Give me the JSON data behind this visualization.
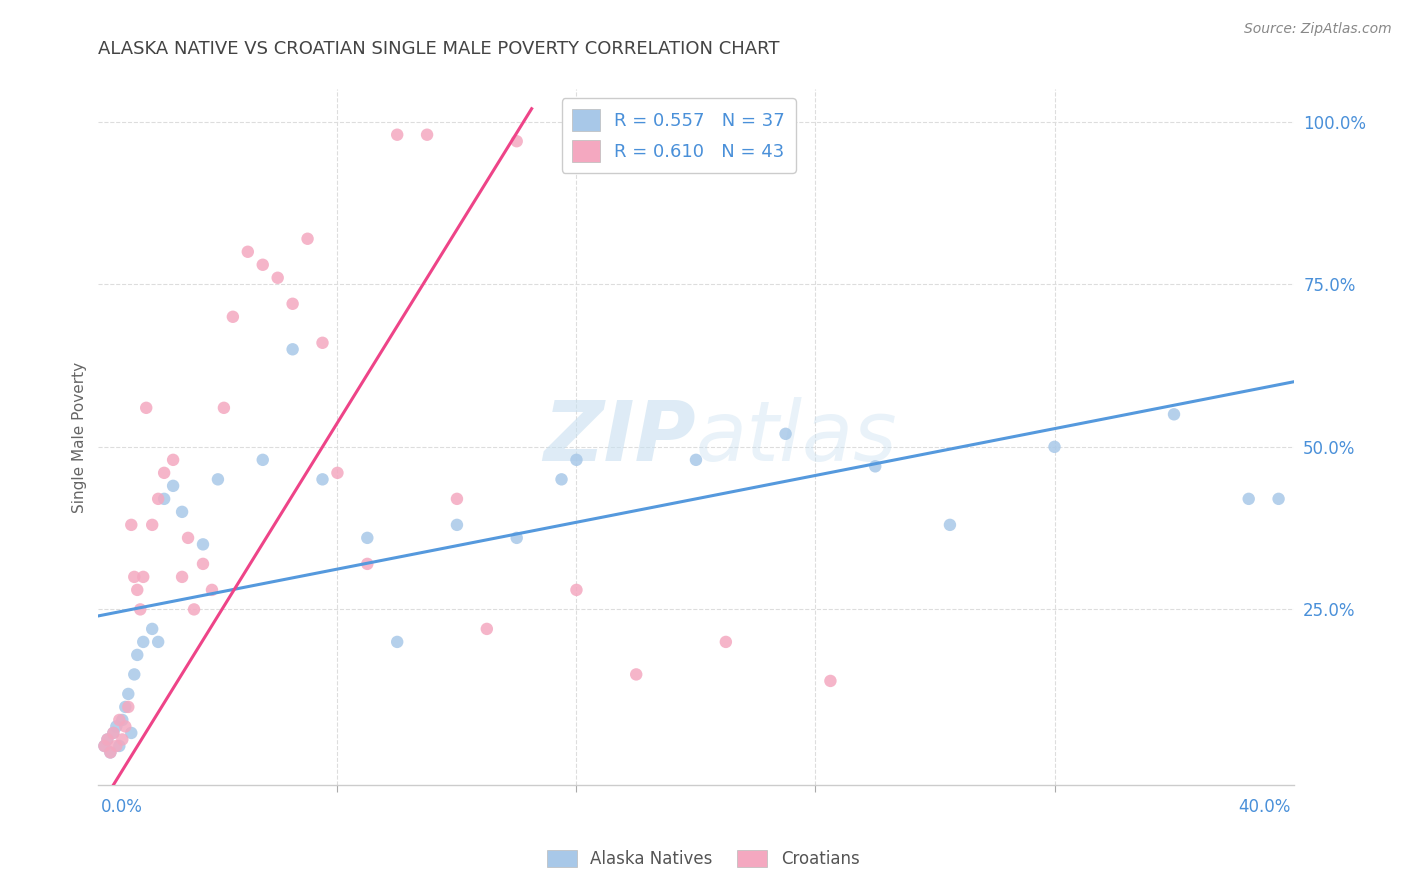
{
  "title": "ALASKA NATIVE VS CROATIAN SINGLE MALE POVERTY CORRELATION CHART",
  "source": "Source: ZipAtlas.com",
  "ylabel": "Single Male Poverty",
  "xmin": 0.0,
  "xmax": 0.4,
  "ymin": -0.02,
  "ymax": 1.05,
  "alaska_R": 0.557,
  "alaska_N": 37,
  "croatian_R": 0.61,
  "croatian_N": 43,
  "alaska_color": "#a8c8e8",
  "croatian_color": "#f4a8c0",
  "alaska_line_color": "#5599dd",
  "croatian_line_color": "#ee4488",
  "alaska_x": [
    0.002,
    0.003,
    0.004,
    0.005,
    0.006,
    0.007,
    0.008,
    0.009,
    0.01,
    0.011,
    0.012,
    0.013,
    0.015,
    0.018,
    0.02,
    0.022,
    0.025,
    0.028,
    0.035,
    0.04,
    0.055,
    0.065,
    0.075,
    0.09,
    0.1,
    0.12,
    0.14,
    0.155,
    0.16,
    0.2,
    0.23,
    0.26,
    0.285,
    0.32,
    0.36,
    0.385,
    0.395
  ],
  "alaska_y": [
    0.04,
    0.05,
    0.03,
    0.06,
    0.07,
    0.04,
    0.08,
    0.1,
    0.12,
    0.06,
    0.15,
    0.18,
    0.2,
    0.22,
    0.2,
    0.42,
    0.44,
    0.4,
    0.35,
    0.45,
    0.48,
    0.65,
    0.45,
    0.36,
    0.2,
    0.38,
    0.36,
    0.45,
    0.48,
    0.48,
    0.52,
    0.47,
    0.38,
    0.5,
    0.55,
    0.42,
    0.42
  ],
  "croatian_x": [
    0.002,
    0.003,
    0.004,
    0.005,
    0.006,
    0.007,
    0.008,
    0.009,
    0.01,
    0.011,
    0.012,
    0.013,
    0.014,
    0.015,
    0.016,
    0.018,
    0.02,
    0.022,
    0.025,
    0.028,
    0.03,
    0.032,
    0.035,
    0.038,
    0.042,
    0.045,
    0.05,
    0.055,
    0.06,
    0.065,
    0.07,
    0.075,
    0.08,
    0.09,
    0.1,
    0.11,
    0.12,
    0.13,
    0.14,
    0.16,
    0.18,
    0.21,
    0.245
  ],
  "croatian_y": [
    0.04,
    0.05,
    0.03,
    0.06,
    0.04,
    0.08,
    0.05,
    0.07,
    0.1,
    0.38,
    0.3,
    0.28,
    0.25,
    0.3,
    0.56,
    0.38,
    0.42,
    0.46,
    0.48,
    0.3,
    0.36,
    0.25,
    0.32,
    0.28,
    0.56,
    0.7,
    0.8,
    0.78,
    0.76,
    0.72,
    0.82,
    0.66,
    0.46,
    0.32,
    0.98,
    0.98,
    0.42,
    0.22,
    0.97,
    0.28,
    0.15,
    0.2,
    0.14
  ],
  "alaska_trendline_x": [
    0.0,
    0.4
  ],
  "alaska_trendline_y": [
    0.24,
    0.6
  ],
  "croatian_trendline_x": [
    0.005,
    0.145
  ],
  "croatian_trendline_y": [
    -0.02,
    1.02
  ],
  "watermark_zip": "ZIP",
  "watermark_atlas": "atlas",
  "watermark_color": "#c8dff0",
  "background_color": "#ffffff",
  "grid_color": "#dddddd",
  "tick_color": "#4a90d9",
  "title_color": "#444444",
  "source_color": "#888888",
  "ylabel_color": "#666666"
}
